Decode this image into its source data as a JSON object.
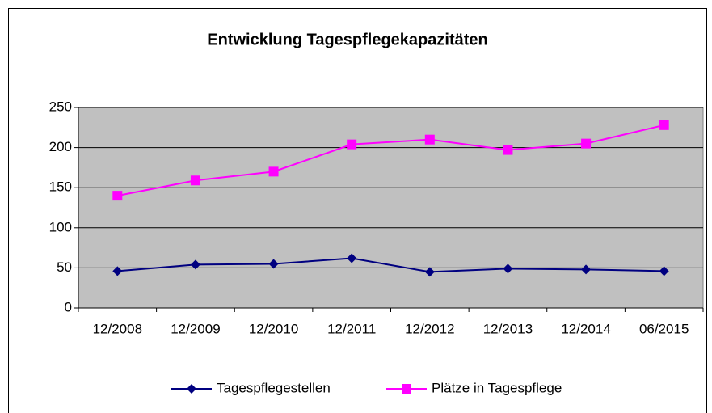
{
  "chart_data": {
    "type": "line",
    "title": "Entwicklung Tagespflegekapazitäten",
    "categories": [
      "12/2008",
      "12/2009",
      "12/2010",
      "12/2011",
      "12/2012",
      "12/2013",
      "12/2014",
      "06/2015"
    ],
    "series": [
      {
        "name": "Tagespflegestellen",
        "color": "#000080",
        "marker": "diamond",
        "values": [
          46,
          54,
          55,
          62,
          45,
          49,
          48,
          46
        ]
      },
      {
        "name": "Plätze in Tagespflege",
        "color": "#ff00ff",
        "marker": "square",
        "values": [
          140,
          159,
          170,
          204,
          210,
          197,
          205,
          228
        ]
      }
    ],
    "ylim": [
      0,
      250
    ],
    "yticks": [
      0,
      50,
      100,
      150,
      200,
      250
    ],
    "grid": true,
    "legend": "bottom"
  }
}
